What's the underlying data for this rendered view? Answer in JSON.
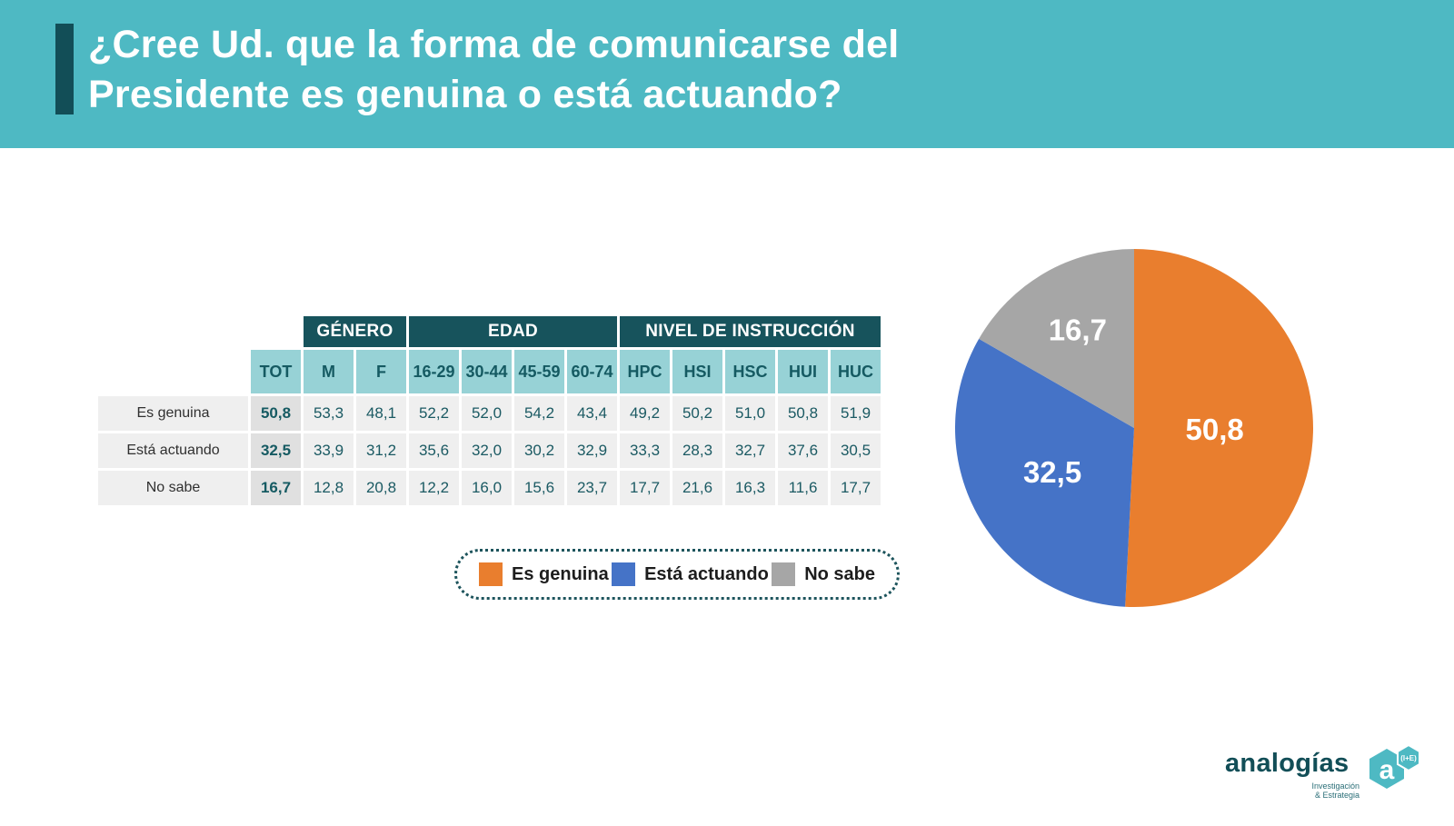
{
  "header": {
    "title_line1": "¿Cree Ud. que la forma de comunicarse del",
    "title_line2": "Presidente es genuina o está actuando?"
  },
  "table": {
    "group_headers": [
      {
        "label": "GÉNERO",
        "span": 2
      },
      {
        "label": "EDAD",
        "span": 4
      },
      {
        "label": "NIVEL DE INSTRUCCIÓN",
        "span": 5
      }
    ],
    "sub_headers": [
      "TOT",
      "M",
      "F",
      "16-29",
      "30-44",
      "45-59",
      "60-74",
      "HPC",
      "HSI",
      "HSC",
      "HUI",
      "HUC"
    ],
    "rows": [
      {
        "label": "Es genuina",
        "tot": "50,8",
        "values": [
          "53,3",
          "48,1",
          "52,2",
          "52,0",
          "54,2",
          "43,4",
          "49,2",
          "50,2",
          "51,0",
          "50,8",
          "51,9"
        ]
      },
      {
        "label": "Está actuando",
        "tot": "32,5",
        "values": [
          "33,9",
          "31,2",
          "35,6",
          "32,0",
          "30,2",
          "32,9",
          "33,3",
          "28,3",
          "32,7",
          "37,6",
          "30,5"
        ]
      },
      {
        "label": "No sabe",
        "tot": "16,7",
        "values": [
          "12,8",
          "20,8",
          "12,2",
          "16,0",
          "15,6",
          "23,7",
          "17,7",
          "21,6",
          "16,3",
          "11,6",
          "17,7"
        ]
      }
    ]
  },
  "legend": {
    "items": [
      {
        "label": "Es genuina",
        "color": "#e97e2e"
      },
      {
        "label": "Está actuando",
        "color": "#4573c7"
      },
      {
        "label": "No sabe",
        "color": "#a6a6a6"
      }
    ]
  },
  "chart_data": {
    "type": "pie",
    "title": "",
    "labels": [
      "Es genuina",
      "Está actuando",
      "No sabe"
    ],
    "values": [
      50.8,
      32.5,
      16.7
    ],
    "value_labels": [
      "50,8",
      "32,5",
      "16,7"
    ],
    "colors": [
      "#e97e2e",
      "#4573c7",
      "#a6a6a6"
    ],
    "start_angle_deg": 0,
    "direction": "clockwise",
    "legend_position": "bottom-left"
  },
  "logo": {
    "wordmark": "analogías",
    "sub_line1": "Investigación",
    "sub_line2": "& Estrategia",
    "hex_letter": "a",
    "hex_badge": "(I+E)"
  },
  "colors": {
    "band_teal": "#4eb9c3",
    "dark_teal": "#17535c",
    "light_teal": "#97d2d6",
    "accent_bar": "#124e57",
    "row_bg": "#efefef",
    "tot_bg": "#e0e0e0",
    "orange": "#e97e2e",
    "blue": "#4573c7",
    "gray": "#a6a6a6"
  }
}
